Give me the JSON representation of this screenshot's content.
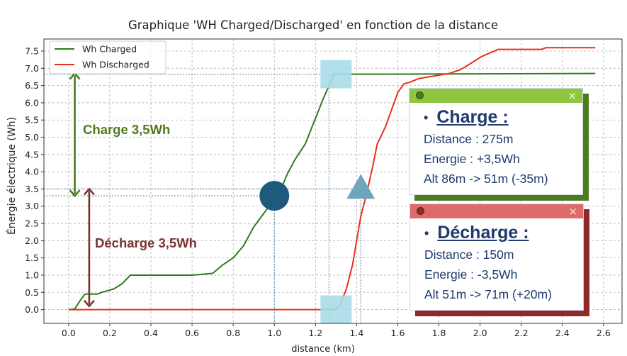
{
  "chart_data": {
    "type": "line",
    "title": "Graphique 'WH Charged/Discharged' en fonction de la distance",
    "xlabel": "distance (km)",
    "ylabel": "Énergie électrique (Wh)",
    "xlim": [
      -0.12,
      2.69
    ],
    "ylim": [
      -0.4,
      7.85
    ],
    "xticks": [
      "0.0",
      "0.2",
      "0.4",
      "0.6",
      "0.8",
      "1.0",
      "1.2",
      "1.4",
      "1.6",
      "1.8",
      "2.0",
      "2.2",
      "2.4",
      "2.6"
    ],
    "yticks": [
      "0.0",
      "0.5",
      "1.0",
      "1.5",
      "2.0",
      "2.5",
      "3.0",
      "3.5",
      "4.0",
      "4.5",
      "5.0",
      "5.5",
      "6.0",
      "6.5",
      "7.0",
      "7.5"
    ],
    "grid": true,
    "legend_position": "top-left",
    "series": [
      {
        "name": "Wh Charged",
        "color": "#2c7d1c",
        "points": [
          [
            0.0,
            0.0
          ],
          [
            0.03,
            0.02
          ],
          [
            0.06,
            0.3
          ],
          [
            0.08,
            0.45
          ],
          [
            0.14,
            0.45
          ],
          [
            0.16,
            0.5
          ],
          [
            0.22,
            0.6
          ],
          [
            0.26,
            0.75
          ],
          [
            0.3,
            1.0
          ],
          [
            0.45,
            1.0
          ],
          [
            0.6,
            1.0
          ],
          [
            0.7,
            1.05
          ],
          [
            0.75,
            1.3
          ],
          [
            0.8,
            1.5
          ],
          [
            0.85,
            1.85
          ],
          [
            0.9,
            2.4
          ],
          [
            0.95,
            2.8
          ],
          [
            1.0,
            3.2
          ],
          [
            1.03,
            3.45
          ],
          [
            1.06,
            3.9
          ],
          [
            1.1,
            4.35
          ],
          [
            1.15,
            4.8
          ],
          [
            1.18,
            5.25
          ],
          [
            1.21,
            5.7
          ],
          [
            1.24,
            6.15
          ],
          [
            1.27,
            6.55
          ],
          [
            1.29,
            6.83
          ],
          [
            1.5,
            6.83
          ],
          [
            2.0,
            6.84
          ],
          [
            2.56,
            6.85
          ]
        ]
      },
      {
        "name": "Wh Discharged",
        "color": "#e8301f",
        "points": [
          [
            0.0,
            0.0
          ],
          [
            0.5,
            0.0
          ],
          [
            1.0,
            0.0
          ],
          [
            1.3,
            0.0
          ],
          [
            1.32,
            0.15
          ],
          [
            1.35,
            0.6
          ],
          [
            1.38,
            1.3
          ],
          [
            1.42,
            2.7
          ],
          [
            1.45,
            3.4
          ],
          [
            1.48,
            4.2
          ],
          [
            1.5,
            4.8
          ],
          [
            1.54,
            5.3
          ],
          [
            1.57,
            5.8
          ],
          [
            1.6,
            6.3
          ],
          [
            1.63,
            6.55
          ],
          [
            1.66,
            6.6
          ],
          [
            1.7,
            6.7
          ],
          [
            1.75,
            6.75
          ],
          [
            1.8,
            6.8
          ],
          [
            1.85,
            6.85
          ],
          [
            1.9,
            6.95
          ],
          [
            1.93,
            7.05
          ],
          [
            1.97,
            7.2
          ],
          [
            2.01,
            7.35
          ],
          [
            2.05,
            7.45
          ],
          [
            2.09,
            7.55
          ],
          [
            2.3,
            7.55
          ],
          [
            2.32,
            7.6
          ],
          [
            2.56,
            7.6
          ]
        ]
      }
    ],
    "annotations": {
      "charge_label": "Charge 3,5Wh",
      "decharge_label": "Décharge 3,5Wh",
      "charge_arrow_y": [
        3.3,
        6.85
      ],
      "charge_arrow_x": 0.03,
      "decharge_arrow_y": [
        0.1,
        3.5
      ],
      "decharge_arrow_x": 0.1,
      "circle_marker": [
        1.0,
        3.3
      ],
      "triangle_marker": [
        1.42,
        3.5
      ],
      "square_markers": [
        [
          1.3,
          6.83
        ],
        [
          1.3,
          0.0
        ]
      ]
    }
  },
  "cards": {
    "charge": {
      "title": "Charge :",
      "lines": [
        "Distance : 275m",
        "Energie : +3,5Wh",
        "Alt 86m -> 51m (-35m)"
      ]
    },
    "decharge": {
      "title": "Décharge :",
      "lines": [
        "Distance : 150m",
        "Energie : -3,5Wh",
        "Alt 51m -> 71m (+20m)"
      ]
    }
  },
  "colors": {
    "charge_bar": "#8fc63f",
    "charge_shadow": "#4b7b1e",
    "decharge_bar": "#de6a6a",
    "decharge_shadow": "#8f2a2a",
    "text_green": "#4f7a1e",
    "text_red": "#7a3230",
    "marker_blue": "#1d5a7c",
    "marker_light": "#a8dbe8",
    "marker_triangle": "#6ea6bb",
    "bullet": "#1f3a6e"
  },
  "icons": {
    "close": "×",
    "bullet": "•"
  }
}
